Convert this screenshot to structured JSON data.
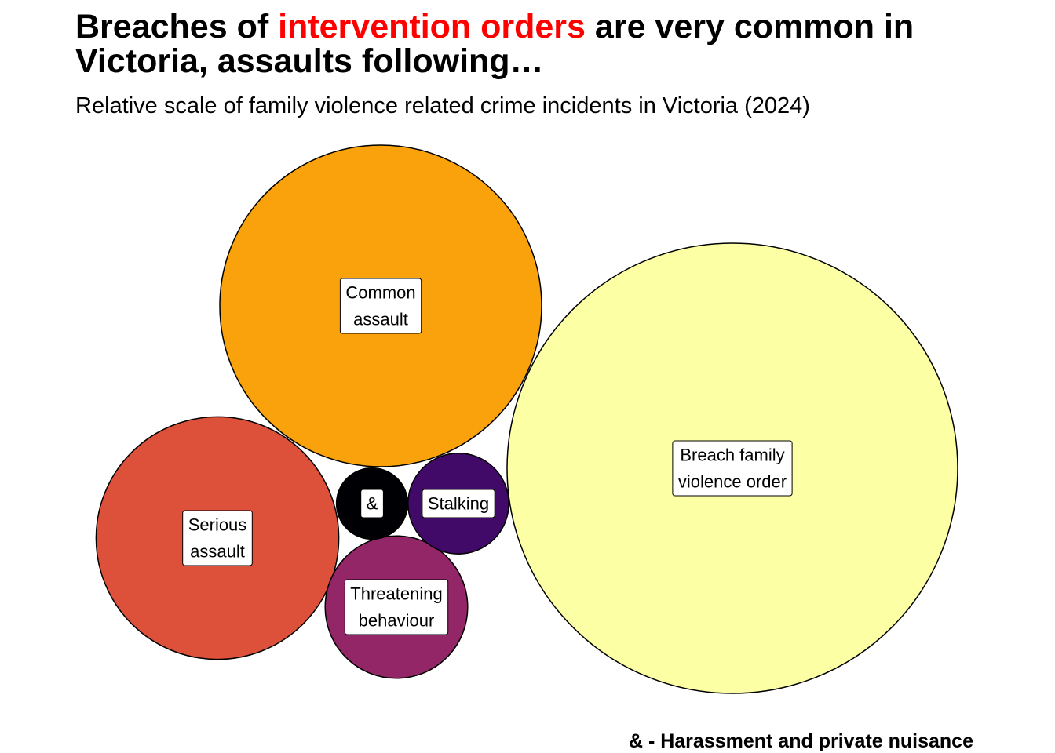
{
  "title": {
    "part1": "Breaches of ",
    "highlight": "intervention orders",
    "part2": " are very common in Victoria, assaults following…",
    "highlight_color": "#ff0000"
  },
  "subtitle": "Relative scale of family violence related crime incidents in Victoria (2024)",
  "footnote": "& - Harassment and private nuisance",
  "chart_data": {
    "type": "circle-packing",
    "value_encoding": "circle area proportional to incident count (relative scale)",
    "bubbles": [
      {
        "id": "breach",
        "label_lines": [
          "Breach family",
          "violence order"
        ],
        "relative_value": 1.0,
        "color": "#FCFFA4"
      },
      {
        "id": "common",
        "label_lines": [
          "Common",
          "assault"
        ],
        "relative_value": 0.51,
        "color": "#F9A20C"
      },
      {
        "id": "serious",
        "label_lines": [
          "Serious",
          "assault"
        ],
        "relative_value": 0.29,
        "color": "#DD513A"
      },
      {
        "id": "threatening",
        "label_lines": [
          "Threatening",
          "behaviour"
        ],
        "relative_value": 0.1,
        "color": "#932667"
      },
      {
        "id": "stalking",
        "label_lines": [
          "Stalking"
        ],
        "relative_value": 0.05,
        "color": "#420A68"
      },
      {
        "id": "harassment",
        "label_lines": [
          "&"
        ],
        "relative_value": 0.025,
        "color": "#000004"
      }
    ]
  }
}
